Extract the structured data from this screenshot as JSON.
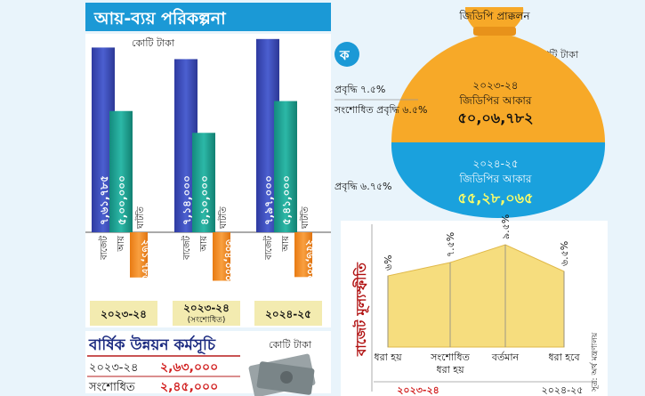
{
  "header": {
    "title": "আয়-ব্যয় পরিকল্পনা"
  },
  "budget_chart": {
    "unit": "কোটি টাকা",
    "labels": {
      "budget": "বাজেট",
      "revenue": "আয়",
      "deficit": "ঘাটতি"
    },
    "years": [
      {
        "name": "২০২৩-২৪",
        "sub": ""
      },
      {
        "name": "২০২৩-২৪",
        "sub": "(সংশোধিত)"
      },
      {
        "name": "২০২৪-২৫",
        "sub": ""
      }
    ]
  },
  "gdp": {
    "bag_label": "জিডিপি প্রাক্কলন",
    "unit": "কোটি টাকা",
    "fy24": {
      "year": "২০২৩-২৪",
      "label": "জিডিপির আকার",
      "size": "৫০,০৬,৭৮২",
      "growth": "প্রবৃদ্ধি ৭.৫%",
      "revised_growth": "সংশোধিত প্রবৃদ্ধি ৬.৫%"
    },
    "fy25": {
      "year": "২০২৪-২৫",
      "label": "জিডিপির আকার",
      "size": "৫৫,২৮,০৬৫",
      "growth": "প্রবৃদ্ধি ৬.৭৫%"
    }
  },
  "inflation": {
    "title": "বাজেট মূল্যস্ফীতি",
    "points": [
      {
        "label": "ধরা হয়",
        "value_text": "৬%"
      },
      {
        "label": "সংশোধিত ধরা হয়",
        "value_text": "৭.৫%"
      },
      {
        "label": "বর্তমান",
        "value_text": "৯.৫%"
      },
      {
        "label": "ধরা হবে",
        "value_text": "৬.৫%"
      }
    ],
    "year_labels": [
      "২০২৩-২৪",
      "২০২৪-২৫"
    ],
    "source": "সূত্র: অর্থ মন্ত্রণালয়"
  },
  "adp": {
    "title": "বার্ষিক উন্নয়ন কর্মসূচি",
    "unit": "কোটি টাকা",
    "rows": [
      {
        "label": "২০২৩-২৪",
        "value": "২,৬৩,০০০"
      },
      {
        "label": "সংশোধিত",
        "value": "২,৪৫,০০০"
      }
    ]
  },
  "chart_data": [
    {
      "type": "bar",
      "categories": [
        "২০২৩-২৪",
        "২০২৩-২৪ (সংশোধিত)",
        "২০২৪-২৫"
      ],
      "series": [
        {
          "name": "বাজেট",
          "values": [
            761785,
            714000,
            797000
          ],
          "labels": [
            "৭,৬১,৭৮৫",
            "৭,১৪,০০০",
            "৭,৯৭,০০০"
          ]
        },
        {
          "name": "আয়",
          "values": [
            500000,
            410000,
            541000
          ],
          "labels": [
            "৫,০০,০০০",
            "৪,১০,০০০",
            "৫,৪১,০০০"
          ]
        },
        {
          "name": "ঘাটতি",
          "values": [
            -261785,
            -304000,
            -256000
          ],
          "labels": [
            "২৬১,৭৮৫",
            "৩০৪,০০০",
            "২৫৬,০০০"
          ]
        }
      ],
      "colors": {
        "budget": "#3f4fb8",
        "revenue": "#1fa394",
        "deficit": "#f28a1e"
      }
    },
    {
      "type": "area",
      "title": "বাজেট মূল্যস্ফীতি",
      "categories": [
        "ধরা হয়",
        "সংশোধিত ধরা হয়",
        "বর্তমান",
        "ধরা হবে"
      ],
      "values": [
        6,
        7.5,
        9.5,
        6.5
      ]
    }
  ]
}
